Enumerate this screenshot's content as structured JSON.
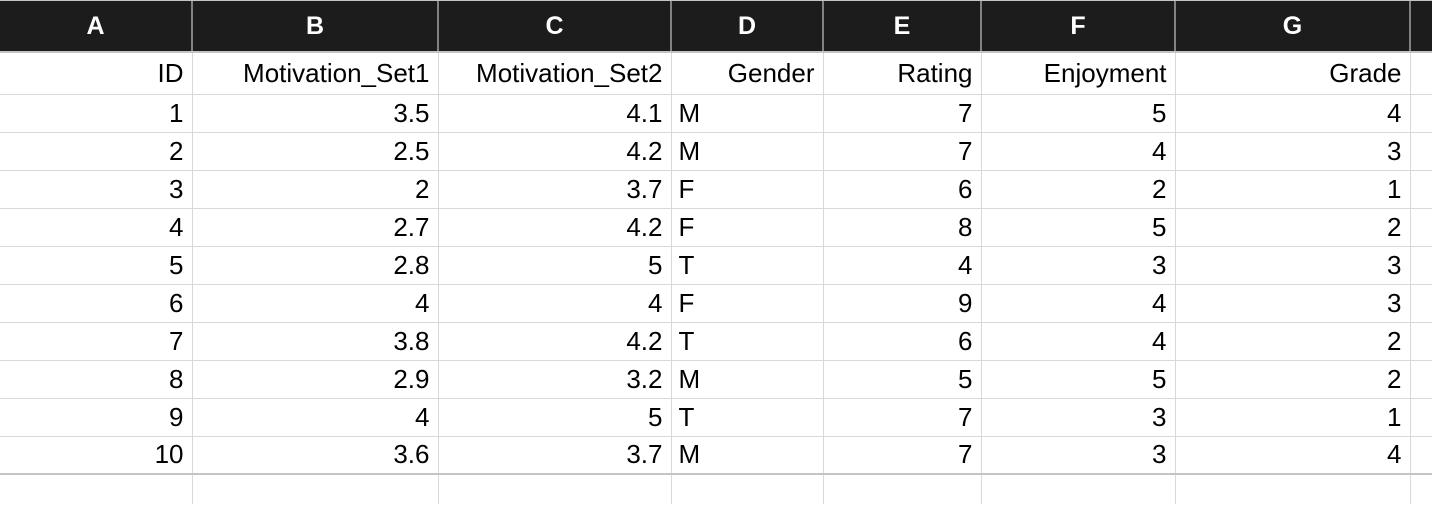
{
  "spreadsheet": {
    "column_letters": [
      "A",
      "B",
      "C",
      "D",
      "E",
      "F",
      "G",
      ""
    ],
    "field_names": [
      "ID",
      "Motivation_Set1",
      "Motivation_Set2",
      "Gender",
      "Rating",
      "Enjoyment",
      "Grade"
    ],
    "column_alignments": [
      "right",
      "right",
      "right",
      "left",
      "right",
      "right",
      "right"
    ],
    "rows": [
      [
        "1",
        "3.5",
        "4.1",
        "M",
        "7",
        "5",
        "4"
      ],
      [
        "2",
        "2.5",
        "4.2",
        "M",
        "7",
        "4",
        "3"
      ],
      [
        "3",
        "2",
        "3.7",
        "F",
        "6",
        "2",
        "1"
      ],
      [
        "4",
        "2.7",
        "4.2",
        "F",
        "8",
        "5",
        "2"
      ],
      [
        "5",
        "2.8",
        "5",
        "T",
        "4",
        "3",
        "3"
      ],
      [
        "6",
        "4",
        "4",
        "F",
        "9",
        "4",
        "3"
      ],
      [
        "7",
        "3.8",
        "4.2",
        "T",
        "6",
        "4",
        "2"
      ],
      [
        "8",
        "2.9",
        "3.2",
        "M",
        "5",
        "5",
        "2"
      ],
      [
        "9",
        "4",
        "5",
        "T",
        "7",
        "3",
        "1"
      ],
      [
        "10",
        "3.6",
        "3.7",
        "M",
        "7",
        "3",
        "4"
      ]
    ],
    "colors": {
      "header_bg": "#1c1c1c",
      "header_text": "#ffffff",
      "gridline": "#d9d9d9",
      "strong_gridline": "#c4c4c4",
      "header_divider": "#828282",
      "cell_text": "#000000"
    }
  }
}
